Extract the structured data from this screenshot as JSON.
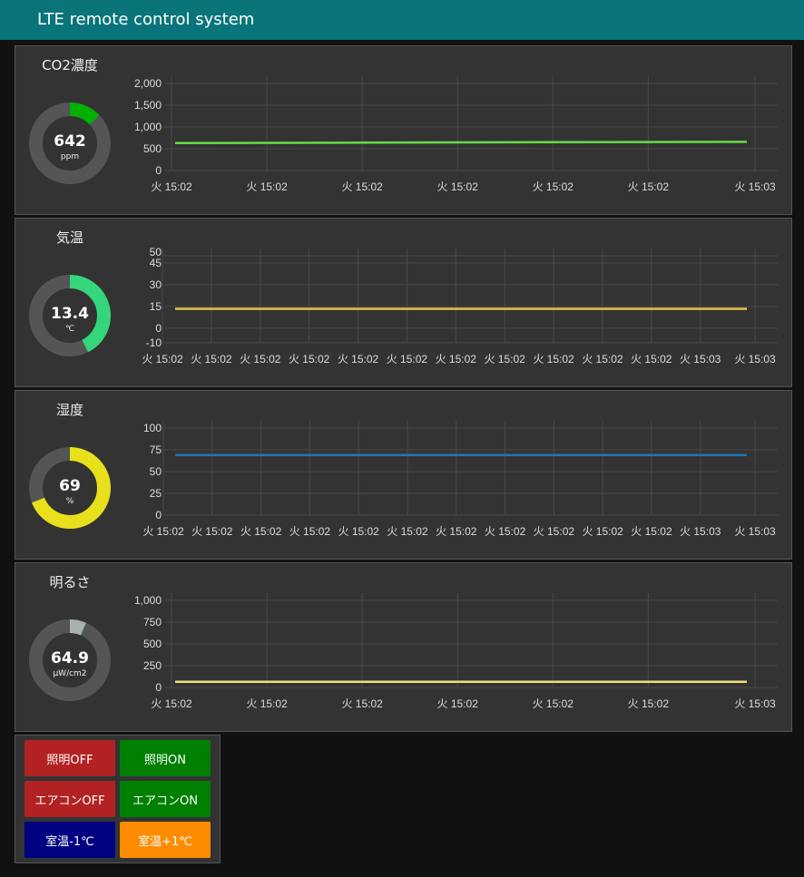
{
  "header": {
    "title": "LTE remote control system",
    "color": "#097479"
  },
  "panels": [
    {
      "title": "CO2濃度",
      "gauge": {
        "value": "642",
        "unit": "ppm",
        "min": 0,
        "max": 5000,
        "color": "#00b000"
      }
    },
    {
      "title": "気温",
      "gauge": {
        "value": "13.4",
        "unit": "℃",
        "min": -10,
        "max": 45,
        "color": "#35d67b"
      }
    },
    {
      "title": "湿度",
      "gauge": {
        "value": "69",
        "unit": "%",
        "min": 0,
        "max": 100,
        "color": "#e8e01a"
      }
    },
    {
      "title": "明るさ",
      "gauge": {
        "value": "64.9",
        "unit": "μW/cm2",
        "min": 0,
        "max": 1000,
        "color": "#a9b0b0"
      }
    }
  ],
  "chart_data": [
    {
      "type": "line",
      "ylim": [
        0,
        2000
      ],
      "yticks": [
        "2,000",
        "1,500",
        "1,000",
        "500",
        "0"
      ],
      "ytick_values": [
        2000,
        1500,
        1000,
        500,
        0
      ],
      "grid": true,
      "xticks": [
        "火 15:02",
        "火 15:02",
        "火 15:02",
        "火 15:02",
        "火 15:02",
        "火 15:02",
        "火 15:03"
      ],
      "series": [
        {
          "color": "#66dd44",
          "values": [
            630,
            640,
            650,
            660
          ]
        }
      ]
    },
    {
      "type": "line",
      "ylim": [
        -10,
        50
      ],
      "yticks": [
        "50",
        "45",
        "30",
        "15",
        "0",
        "-10"
      ],
      "ytick_values": [
        50,
        45,
        30,
        15,
        0,
        -10
      ],
      "grid": true,
      "xticks": [
        "火 15:02",
        "火 15:02",
        "火 15:02",
        "火 15:02",
        "火 15:02",
        "火 15:02",
        "火 15:02",
        "火 15:02",
        "火 15:02",
        "火 15:02",
        "火 15:02",
        "火 15:03",
        "火 15:03"
      ],
      "series": [
        {
          "color": "#e8c547",
          "values": [
            13.4,
            13.4
          ]
        }
      ]
    },
    {
      "type": "line",
      "ylim": [
        0,
        100
      ],
      "yticks": [
        "100",
        "75",
        "50",
        "25",
        "0"
      ],
      "ytick_values": [
        100,
        75,
        50,
        25,
        0
      ],
      "grid": true,
      "xticks": [
        "火 15:02",
        "火 15:02",
        "火 15:02",
        "火 15:02",
        "火 15:02",
        "火 15:02",
        "火 15:02",
        "火 15:02",
        "火 15:02",
        "火 15:02",
        "火 15:02",
        "火 15:03",
        "火 15:03"
      ],
      "series": [
        {
          "color": "#1f77b4",
          "values": [
            69,
            69
          ]
        }
      ]
    },
    {
      "type": "line",
      "ylim": [
        0,
        1000
      ],
      "yticks": [
        "1,000",
        "750",
        "500",
        "250",
        "0"
      ],
      "ytick_values": [
        1000,
        750,
        500,
        250,
        0
      ],
      "grid": true,
      "xticks": [
        "火 15:02",
        "火 15:02",
        "火 15:02",
        "火 15:02",
        "火 15:02",
        "火 15:02",
        "火 15:03"
      ],
      "series": [
        {
          "color": "#f0e07a",
          "values": [
            64.9,
            64.9
          ]
        }
      ]
    }
  ],
  "buttons": [
    {
      "label": "照明OFF",
      "color": "#b22222"
    },
    {
      "label": "照明ON",
      "color": "#008000"
    },
    {
      "label": "エアコンOFF",
      "color": "#b22222"
    },
    {
      "label": "エアコンON",
      "color": "#008000"
    },
    {
      "label": "室温-1℃",
      "color": "#000080"
    },
    {
      "label": "室温+1℃",
      "color": "#ff8c00"
    }
  ]
}
